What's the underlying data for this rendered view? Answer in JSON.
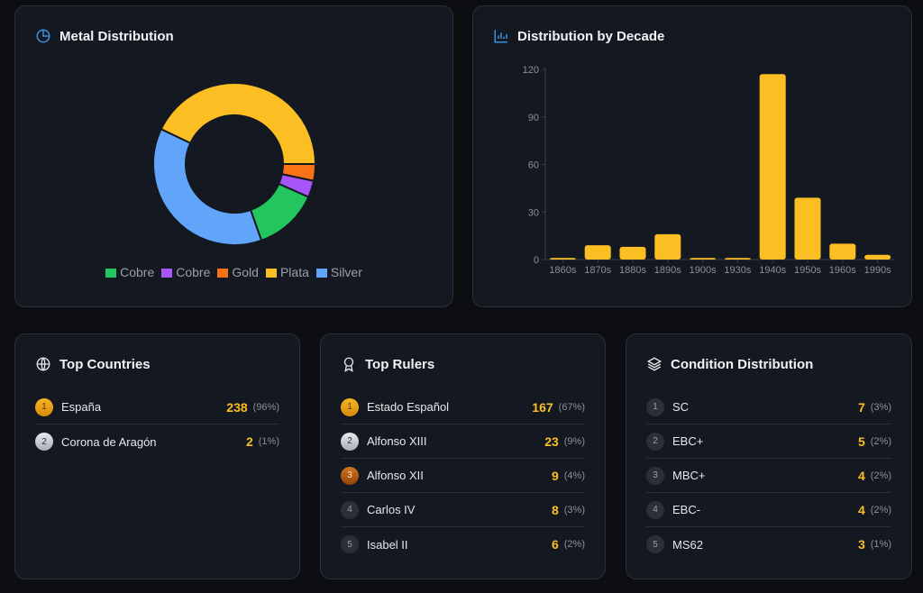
{
  "metal": {
    "title": "Metal Distribution",
    "icon": "pie-chart-icon"
  },
  "decade": {
    "title": "Distribution by Decade",
    "icon": "bar-chart-icon"
  },
  "chart_data": [
    {
      "type": "pie",
      "donut": true,
      "legend_position": "bottom",
      "series": [
        {
          "name": "Cobre",
          "value": 31,
          "color": "#22c55e"
        },
        {
          "name": "Cobre",
          "value": 8,
          "color": "#a855f7"
        },
        {
          "name": "Gold",
          "value": 8,
          "color": "#f97316"
        },
        {
          "name": "Plata",
          "value": 103,
          "color": "#fbbf24"
        },
        {
          "name": "Silver",
          "value": 90,
          "color": "#60a5fa"
        }
      ]
    },
    {
      "type": "bar",
      "categories": [
        "1860s",
        "1870s",
        "1880s",
        "1890s",
        "1900s",
        "1930s",
        "1940s",
        "1950s",
        "1960s",
        "1990s"
      ],
      "values": [
        1,
        9,
        8,
        16,
        1,
        1,
        117,
        39,
        10,
        3
      ],
      "ylim": [
        0,
        120
      ],
      "yticks": [
        "0",
        "30",
        "60",
        "90",
        "120"
      ],
      "color": "#fbbf24",
      "grid": false
    }
  ],
  "countries": {
    "title": "Top Countries",
    "items": [
      {
        "rank": "1",
        "name": "España",
        "count": "238",
        "pct": "(96%)"
      },
      {
        "rank": "2",
        "name": "Corona de Aragón",
        "count": "2",
        "pct": "(1%)"
      }
    ]
  },
  "rulers": {
    "title": "Top Rulers",
    "items": [
      {
        "rank": "1",
        "name": "Estado Español",
        "count": "167",
        "pct": "(67%)"
      },
      {
        "rank": "2",
        "name": "Alfonso XIII",
        "count": "23",
        "pct": "(9%)"
      },
      {
        "rank": "3",
        "name": "Alfonso XII",
        "count": "9",
        "pct": "(4%)"
      },
      {
        "rank": "4",
        "name": "Carlos IV",
        "count": "8",
        "pct": "(3%)"
      },
      {
        "rank": "5",
        "name": "Isabel II",
        "count": "6",
        "pct": "(2%)"
      }
    ]
  },
  "conditions": {
    "title": "Condition Distribution",
    "items": [
      {
        "rank": "1",
        "name": "SC",
        "count": "7",
        "pct": "(3%)"
      },
      {
        "rank": "2",
        "name": "EBC+",
        "count": "5",
        "pct": "(2%)"
      },
      {
        "rank": "3",
        "name": "MBC+",
        "count": "4",
        "pct": "(2%)"
      },
      {
        "rank": "4",
        "name": "EBC-",
        "count": "4",
        "pct": "(2%)"
      },
      {
        "rank": "5",
        "name": "MS62",
        "count": "3",
        "pct": "(1%)"
      }
    ]
  }
}
